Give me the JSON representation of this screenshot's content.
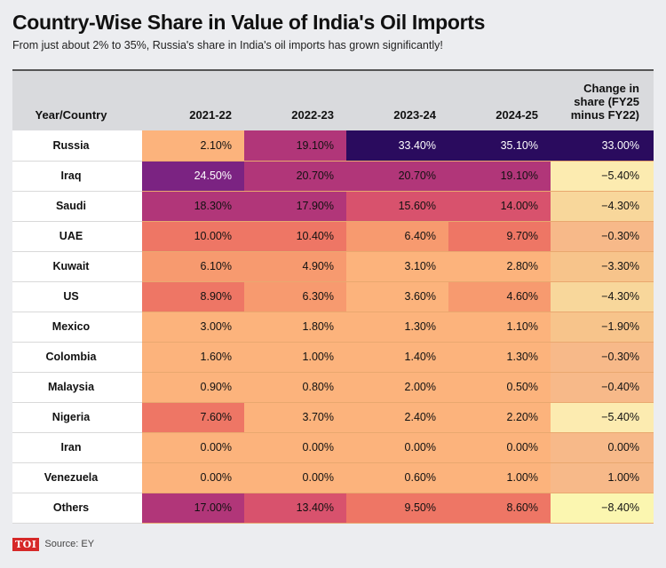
{
  "title": "Country-Wise Share in Value of India's Oil Imports",
  "subtitle": "From just about 2% to 35%, Russia's share in India's oil imports has grown significantly!",
  "footer": {
    "logo": "TOI",
    "source": "Source: EY"
  },
  "chart_data": {
    "type": "table",
    "title": "Country-Wise Share in Value of India's Oil Imports",
    "columns": [
      "Year/Country",
      "2021-22",
      "2022-23",
      "2023-24",
      "2024-25",
      "Change in share (FY25 minus FY22)"
    ],
    "rows": [
      {
        "country": "Russia",
        "values": [
          "2.10%",
          "19.10%",
          "33.40%",
          "35.10%"
        ],
        "change": "33.00%"
      },
      {
        "country": "Iraq",
        "values": [
          "24.50%",
          "20.70%",
          "20.70%",
          "19.10%"
        ],
        "change": "−5.40%"
      },
      {
        "country": "Saudi",
        "values": [
          "18.30%",
          "17.90%",
          "15.60%",
          "14.00%"
        ],
        "change": "−4.30%"
      },
      {
        "country": "UAE",
        "values": [
          "10.00%",
          "10.40%",
          "6.40%",
          "9.70%"
        ],
        "change": "−0.30%"
      },
      {
        "country": "Kuwait",
        "values": [
          "6.10%",
          "4.90%",
          "3.10%",
          "2.80%"
        ],
        "change": "−3.30%"
      },
      {
        "country": "US",
        "values": [
          "8.90%",
          "6.30%",
          "3.60%",
          "4.60%"
        ],
        "change": "−4.30%"
      },
      {
        "country": "Mexico",
        "values": [
          "3.00%",
          "1.80%",
          "1.30%",
          "1.10%"
        ],
        "change": "−1.90%"
      },
      {
        "country": "Colombia",
        "values": [
          "1.60%",
          "1.00%",
          "1.40%",
          "1.30%"
        ],
        "change": "−0.30%"
      },
      {
        "country": "Malaysia",
        "values": [
          "0.90%",
          "0.80%",
          "2.00%",
          "0.50%"
        ],
        "change": "−0.40%"
      },
      {
        "country": "Nigeria",
        "values": [
          "7.60%",
          "3.70%",
          "2.40%",
          "2.20%"
        ],
        "change": "−5.40%"
      },
      {
        "country": "Iran",
        "values": [
          "0.00%",
          "0.00%",
          "0.00%",
          "0.00%"
        ],
        "change": "0.00%"
      },
      {
        "country": "Venezuela",
        "values": [
          "0.00%",
          "0.00%",
          "0.60%",
          "1.00%"
        ],
        "change": "1.00%"
      },
      {
        "country": "Others",
        "values": [
          "17.00%",
          "13.40%",
          "9.50%",
          "8.60%"
        ],
        "change": "−8.40%"
      }
    ],
    "colors": {
      "share_scale": [
        "#fcb37c",
        "#f79a6f",
        "#ee7665",
        "#d8526d",
        "#b13679",
        "#7b2382",
        "#3b0f70",
        "#2a0b5e"
      ],
      "change_scale": [
        "#fbf6b0",
        "#fcebb0",
        "#f8d79b",
        "#f7c48b",
        "#f7b989",
        "#2a0b5e"
      ]
    }
  }
}
